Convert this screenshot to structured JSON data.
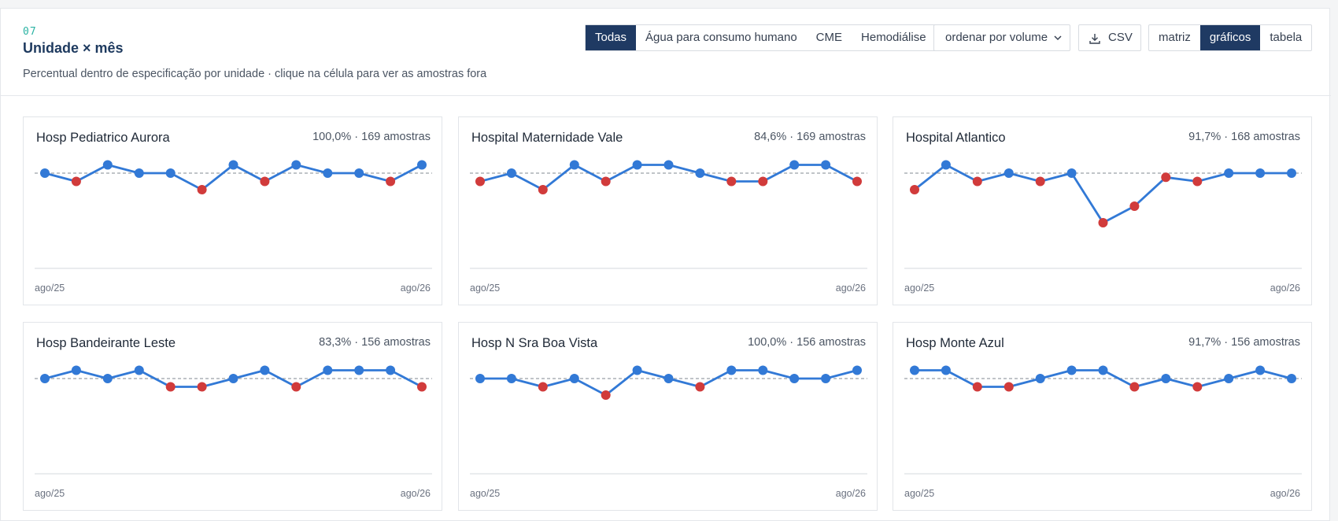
{
  "header": {
    "section_number": "07",
    "title": "Unidade × mês",
    "subtitle": "Percentual dentro de especificação por unidade · clique na célula para ver as amostras fora"
  },
  "filters": [
    {
      "label": "Todas",
      "active": true
    },
    {
      "label": "Água para consumo humano",
      "active": false
    },
    {
      "label": "CME",
      "active": false
    },
    {
      "label": "Hemodiálise",
      "active": false
    }
  ],
  "sort_select": {
    "value": "ordenar por volume"
  },
  "csv_button": {
    "label": "CSV",
    "icon": "download-icon"
  },
  "view_toggle": [
    {
      "label": "matriz",
      "active": false
    },
    {
      "label": "gráficos",
      "active": true
    },
    {
      "label": "tabela",
      "active": false
    }
  ],
  "colors": {
    "ok": "#3279d6",
    "fail": "#d13b3b",
    "line": "#3279d6",
    "active": "#1f3a63"
  },
  "chart_data": [
    {
      "type": "line",
      "title": "Hosp Pediatrico Aurora",
      "summary": "100,0% · 169 amostras",
      "x_start": "ago/25",
      "x_end": "ago/26",
      "values": [
        100,
        99,
        101,
        100,
        100,
        98,
        101,
        99,
        101,
        100,
        100,
        99,
        101
      ],
      "status": [
        "ok",
        "fail",
        "ok",
        "ok",
        "ok",
        "fail",
        "ok",
        "fail",
        "ok",
        "ok",
        "ok",
        "fail",
        "ok"
      ]
    },
    {
      "type": "line",
      "title": "Hospital Maternidade Vale",
      "summary": "84,6% · 169 amostras",
      "x_start": "ago/25",
      "x_end": "ago/26",
      "values": [
        99,
        100,
        98,
        101,
        99,
        101,
        101,
        100,
        99,
        99,
        101,
        101,
        99
      ],
      "status": [
        "fail",
        "ok",
        "fail",
        "ok",
        "fail",
        "ok",
        "ok",
        "ok",
        "fail",
        "fail",
        "ok",
        "ok",
        "fail"
      ]
    },
    {
      "type": "line",
      "title": "Hospital Atlantico",
      "summary": "91,7% · 168 amostras",
      "x_start": "ago/25",
      "x_end": "ago/26",
      "values": [
        98,
        101,
        99,
        100,
        99,
        100,
        94,
        96,
        99.5,
        99,
        100,
        100,
        100
      ],
      "status": [
        "fail",
        "ok",
        "fail",
        "ok",
        "fail",
        "ok",
        "fail",
        "fail",
        "fail",
        "fail",
        "ok",
        "ok",
        "ok"
      ]
    },
    {
      "type": "line",
      "title": "Hosp Bandeirante Leste",
      "summary": "83,3% · 156 amostras",
      "x_start": "ago/25",
      "x_end": "ago/26",
      "values": [
        100,
        101,
        100,
        101,
        99,
        99,
        100,
        101,
        99,
        101,
        101,
        101,
        99
      ],
      "status": [
        "ok",
        "ok",
        "ok",
        "ok",
        "fail",
        "fail",
        "ok",
        "ok",
        "fail",
        "ok",
        "ok",
        "ok",
        "fail"
      ]
    },
    {
      "type": "line",
      "title": "Hosp N Sra Boa Vista",
      "summary": "100,0% · 156 amostras",
      "x_start": "ago/25",
      "x_end": "ago/26",
      "values": [
        100,
        100,
        99,
        100,
        98,
        101,
        100,
        99,
        101,
        101,
        100,
        100,
        101
      ],
      "status": [
        "ok",
        "ok",
        "fail",
        "ok",
        "fail",
        "ok",
        "ok",
        "fail",
        "ok",
        "ok",
        "ok",
        "ok",
        "ok"
      ]
    },
    {
      "type": "line",
      "title": "Hosp Monte Azul",
      "summary": "91,7% · 156 amostras",
      "x_start": "ago/25",
      "x_end": "ago/26",
      "values": [
        101,
        101,
        99,
        99,
        100,
        101,
        101,
        99,
        100,
        99,
        100,
        101,
        100
      ],
      "status": [
        "ok",
        "ok",
        "fail",
        "fail",
        "ok",
        "ok",
        "ok",
        "fail",
        "ok",
        "fail",
        "ok",
        "ok",
        "ok"
      ]
    }
  ]
}
